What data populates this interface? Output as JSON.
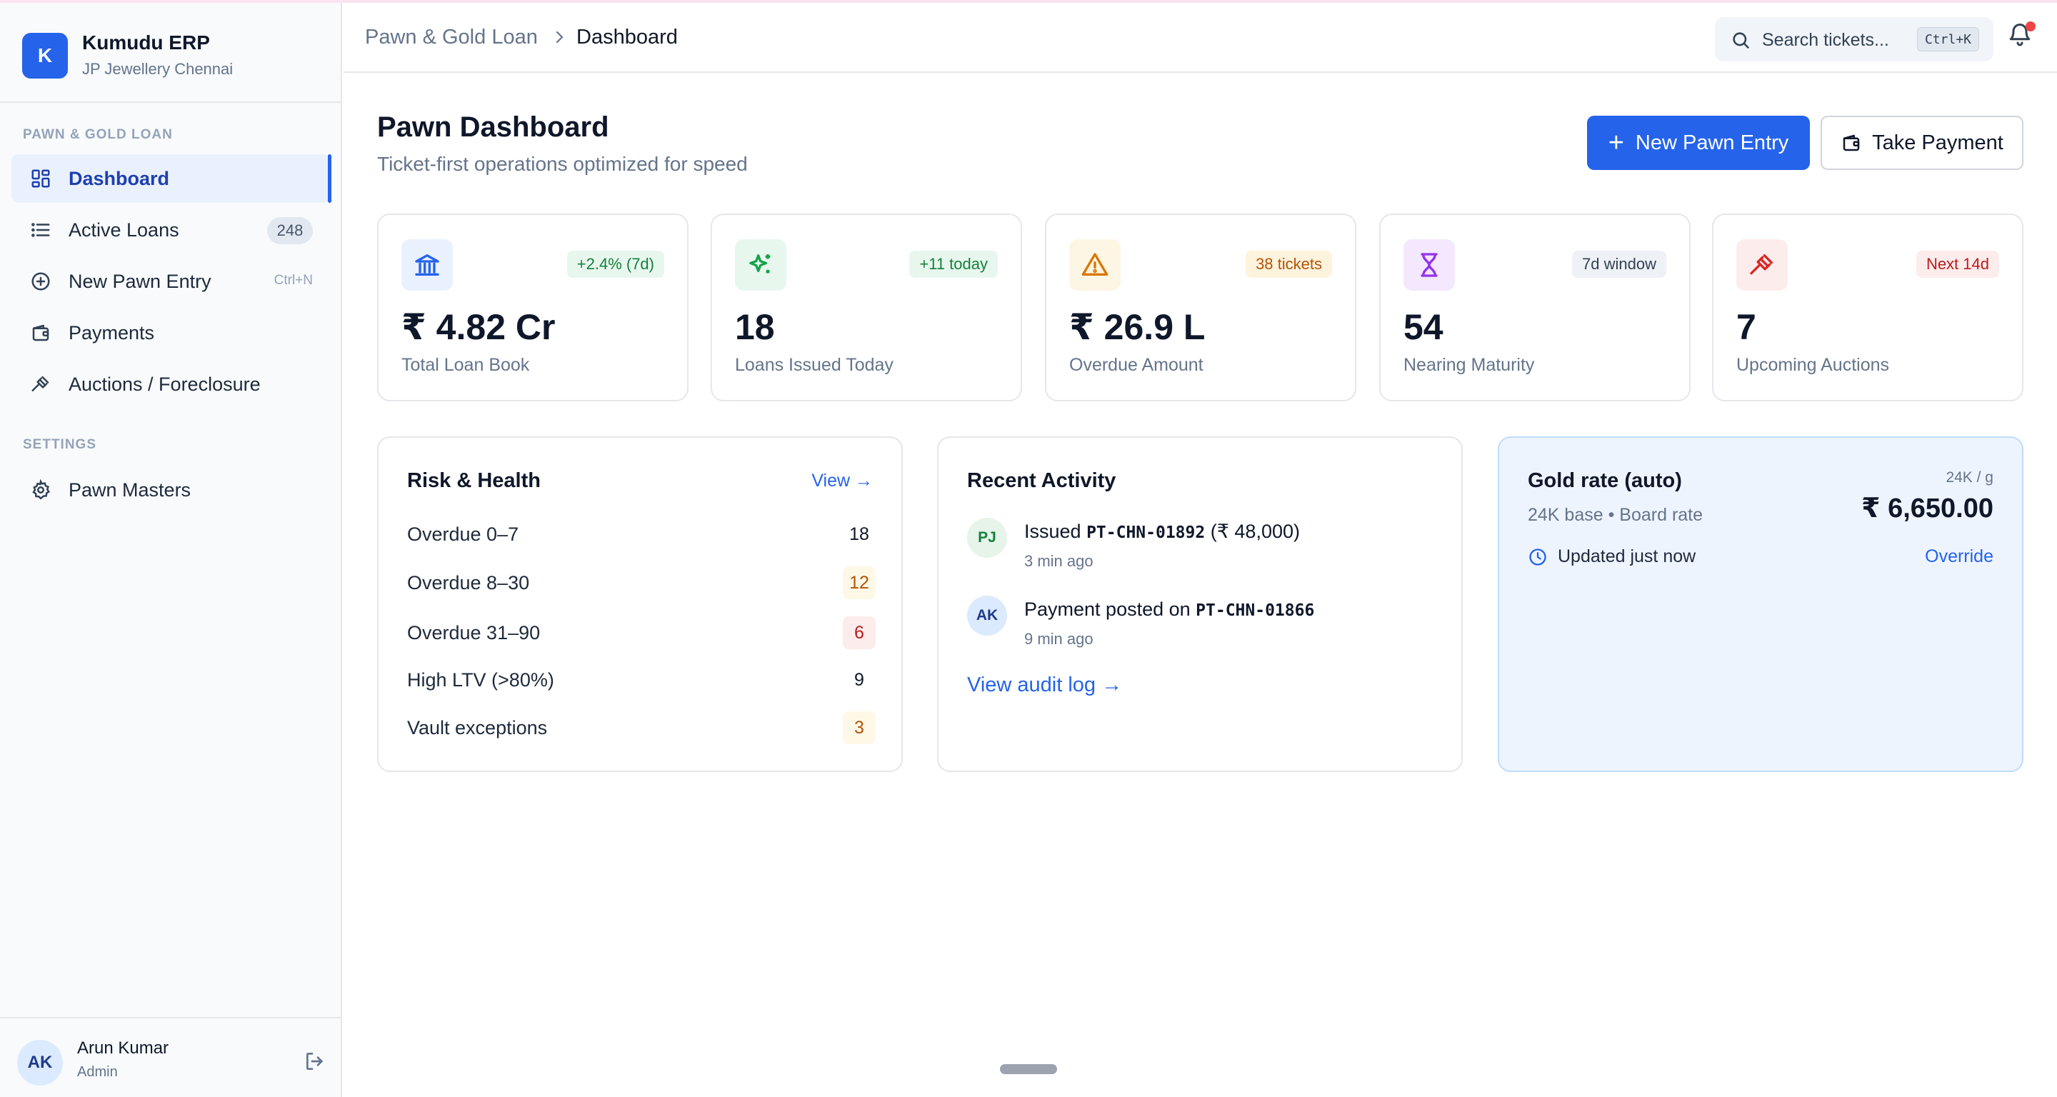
{
  "brand": {
    "logo_letter": "K",
    "name": "Kumudu ERP",
    "subtitle": "JP Jewellery Chennai"
  },
  "sidebar": {
    "section_pawn": "PAWN & GOLD LOAN",
    "items": [
      {
        "label": "Dashboard",
        "icon": "dashboard-grid-icon",
        "active": true
      },
      {
        "label": "Active Loans",
        "icon": "list-icon",
        "badge": "248"
      },
      {
        "label": "New Pawn Entry",
        "icon": "plus-circle-icon",
        "shortcut": "Ctrl+N"
      },
      {
        "label": "Payments",
        "icon": "wallet-icon"
      },
      {
        "label": "Auctions / Foreclosure",
        "icon": "gavel-icon"
      }
    ],
    "section_settings": "SETTINGS",
    "settings_items": [
      {
        "label": "Pawn Masters",
        "icon": "gear-icon"
      }
    ]
  },
  "user": {
    "initials": "AK",
    "name": "Arun Kumar",
    "role": "Admin"
  },
  "header": {
    "breadcrumb": [
      "Pawn & Gold Loan",
      "Dashboard"
    ],
    "search_placeholder": "Search tickets...",
    "search_shortcut": "Ctrl+K"
  },
  "page": {
    "title": "Pawn Dashboard",
    "subtitle": "Ticket-first operations optimized for speed",
    "primary_action": "New Pawn Entry",
    "secondary_action": "Take Payment"
  },
  "kpis": [
    {
      "icon": "bank-icon",
      "pill": "+2.4% (7d)",
      "value": "₹ 4.82 Cr",
      "label": "Total Loan Book",
      "accent": "#2563eb"
    },
    {
      "icon": "sparkle-icon",
      "pill": "+11 today",
      "value": "18",
      "label": "Loans Issued Today",
      "accent": "#16a34a"
    },
    {
      "icon": "warning-icon",
      "pill": "38 tickets",
      "value": "₹ 26.9 L",
      "label": "Overdue Amount",
      "accent": "#d97706"
    },
    {
      "icon": "hourglass-icon",
      "pill": "7d window",
      "value": "54",
      "label": "Nearing Maturity",
      "accent": "#9333ea"
    },
    {
      "icon": "gavel-icon",
      "pill": "Next 14d",
      "value": "7",
      "label": "Upcoming Auctions",
      "accent": "#dc2626"
    }
  ],
  "risk": {
    "title": "Risk & Health",
    "link": "View →",
    "rows": [
      {
        "label": "Overdue 0–7",
        "value": "18",
        "tone": "plain"
      },
      {
        "label": "Overdue 8–30",
        "value": "12",
        "tone": "warn"
      },
      {
        "label": "Overdue 31–90",
        "value": "6",
        "tone": "bad"
      },
      {
        "label": "High LTV (>80%)",
        "value": "9",
        "tone": "plain"
      },
      {
        "label": "Vault exceptions",
        "value": "3",
        "tone": "warn"
      }
    ]
  },
  "activity": {
    "title": "Recent Activity",
    "items": [
      {
        "initials": "PJ",
        "prefix": "Issued ",
        "code": "PT-CHN-01892",
        "suffix": " (₹ 48,000)",
        "time": "3 min ago"
      },
      {
        "initials": "AK",
        "prefix": "Payment posted on ",
        "code": "PT-CHN-01866",
        "suffix": "",
        "time": "9 min ago"
      }
    ],
    "audit_link": "View audit log →"
  },
  "gold": {
    "title": "Gold rate (auto)",
    "subtitle": "24K base • Board rate",
    "unit": "24K / g",
    "value": "₹  6,650.00",
    "updated": "Updated  just now",
    "override": "Override"
  }
}
